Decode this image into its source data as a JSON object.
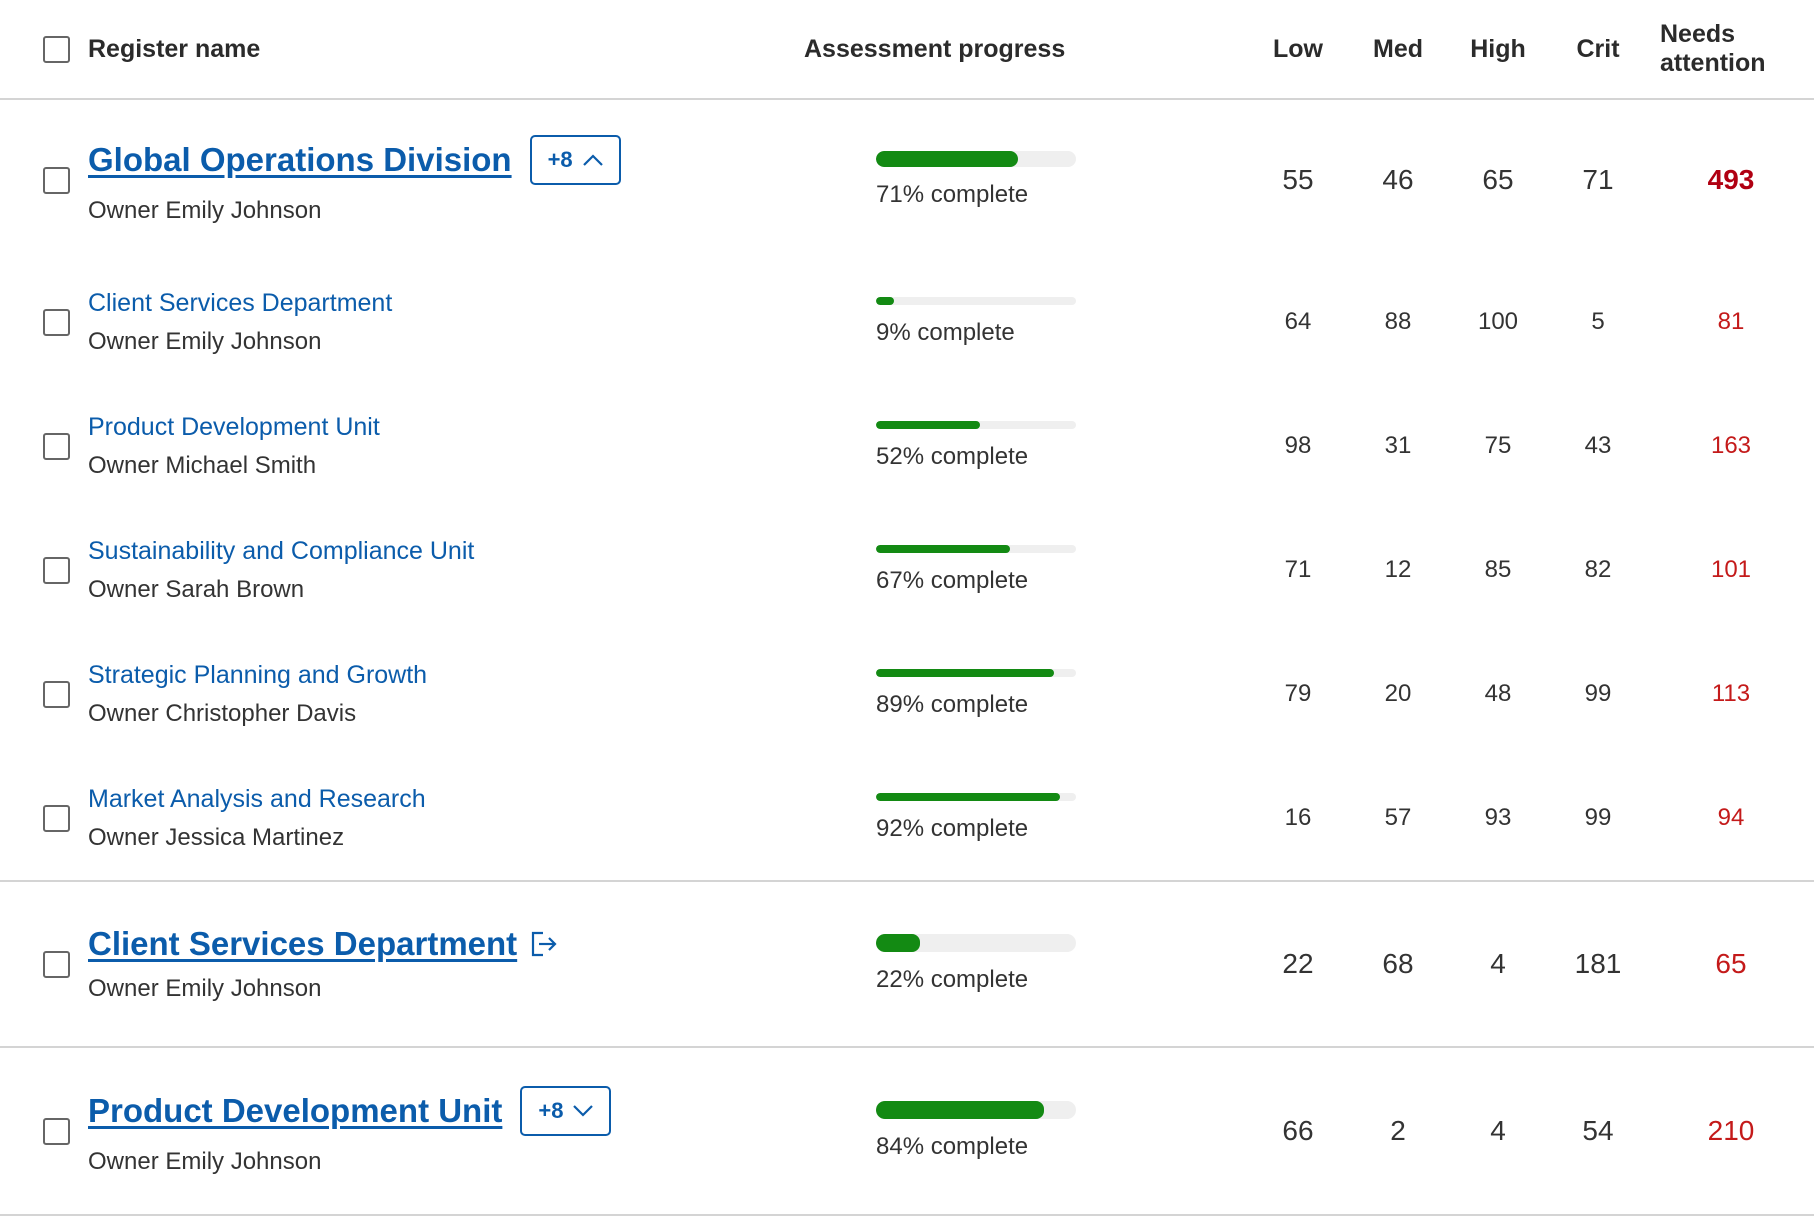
{
  "columns": {
    "register_name": "Register name",
    "assessment_progress": "Assessment progress",
    "low": "Low",
    "med": "Med",
    "high": "High",
    "crit": "Crit",
    "needs_attention": "Needs attention"
  },
  "groups": [
    {
      "name": "Global Operations Division",
      "owner": "Owner Emily Johnson",
      "badge": "+8",
      "expanded": true,
      "progress": 0.71,
      "progress_label": "71% complete",
      "low": "55",
      "med": "46",
      "high": "65",
      "crit": "71",
      "needs_attention": "493",
      "children": [
        {
          "name": "Client Services Department",
          "owner": "Owner Emily Johnson",
          "progress": 0.09,
          "progress_label": "9% complete",
          "low": "64",
          "med": "88",
          "high": "100",
          "crit": "5",
          "needs_attention": "81"
        },
        {
          "name": "Product Development Unit",
          "owner": "Owner Michael Smith",
          "progress": 0.52,
          "progress_label": "52% complete",
          "low": "98",
          "med": "31",
          "high": "75",
          "crit": "43",
          "needs_attention": "163"
        },
        {
          "name": "Sustainability and Compliance Unit",
          "owner": "Owner Sarah Brown",
          "progress": 0.67,
          "progress_label": "67% complete",
          "low": "71",
          "med": "12",
          "high": "85",
          "crit": "82",
          "needs_attention": "101"
        },
        {
          "name": "Strategic Planning and Growth",
          "owner": "Owner Christopher Davis",
          "progress": 0.89,
          "progress_label": "89% complete",
          "low": "79",
          "med": "20",
          "high": "48",
          "crit": "99",
          "needs_attention": "113"
        },
        {
          "name": "Market Analysis and Research",
          "owner": "Owner Jessica Martinez",
          "progress": 0.92,
          "progress_label": "92% complete",
          "low": "16",
          "med": "57",
          "high": "93",
          "crit": "99",
          "needs_attention": "94"
        }
      ]
    },
    {
      "name": "Client Services Department",
      "owner": "Owner Emily Johnson",
      "external_link": true,
      "progress": 0.22,
      "progress_label": "22% complete",
      "low": "22",
      "med": "68",
      "high": "4",
      "crit": "181",
      "needs_attention": "65"
    },
    {
      "name": "Product Development Unit",
      "owner": "Owner Emily Johnson",
      "badge": "+8",
      "expanded": false,
      "progress": 0.84,
      "progress_label": "84% complete",
      "low": "66",
      "med": "2",
      "high": "4",
      "crit": "54",
      "needs_attention": "210"
    }
  ],
  "colors": {
    "link": "#0b5cab",
    "progress_fill": "#138a13",
    "progress_track": "#efefef",
    "needs_attention": "#c41a1a"
  },
  "icons": {
    "expand_up": "chevron-up-icon",
    "expand_down": "chevron-down-icon",
    "external": "external-link-icon"
  }
}
